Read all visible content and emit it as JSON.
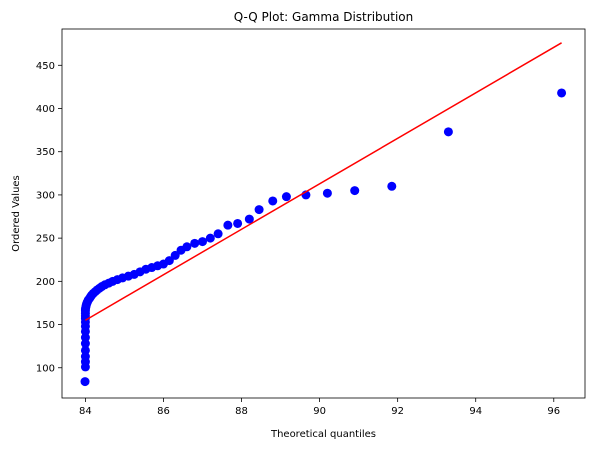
{
  "chart_data": {
    "type": "scatter",
    "title": "Q-Q Plot: Gamma Distribution",
    "xlabel": "Theoretical quantiles",
    "ylabel": "Ordered Values",
    "xlim": [
      83.4,
      96.8
    ],
    "ylim": [
      65,
      492
    ],
    "x_ticks": [
      84,
      86,
      88,
      90,
      92,
      94,
      96
    ],
    "y_ticks": [
      100,
      150,
      200,
      250,
      300,
      350,
      400,
      450
    ],
    "grid": false,
    "legend": "none",
    "colors": {
      "points": "#0000ff",
      "fit_line": "#ff0000",
      "axes": "#000000"
    },
    "series": [
      {
        "kind": "points",
        "x": [
          83.99,
          84.0,
          84.0,
          84.0,
          84.0,
          84.0,
          84.0,
          84.0,
          84.0,
          84.0,
          84.0,
          84.0,
          84.0,
          84.0,
          84.0,
          84.01,
          84.02,
          84.03,
          84.05,
          84.07,
          84.1,
          84.13,
          84.16,
          84.2,
          84.25,
          84.3,
          84.36,
          84.42,
          84.5,
          84.6,
          84.7,
          84.82,
          84.95,
          85.1,
          85.25,
          85.4,
          85.55,
          85.7,
          85.85,
          86.0,
          86.15,
          86.3,
          86.45,
          86.6,
          86.8,
          87.0,
          87.2,
          87.4,
          87.65,
          87.9,
          88.2,
          88.45,
          88.8,
          89.15,
          89.65,
          90.2,
          90.9,
          91.85,
          93.3,
          96.2
        ],
        "y": [
          84,
          101,
          107,
          113,
          120,
          128,
          135,
          142,
          148,
          153,
          157,
          160,
          163,
          166,
          168,
          170,
          172,
          174,
          176,
          178,
          180,
          182,
          184,
          186,
          188,
          190,
          192,
          194,
          196,
          198,
          200,
          202,
          204,
          206,
          208,
          211,
          214,
          216,
          218,
          220,
          224,
          230,
          236,
          240,
          244,
          246,
          250,
          255,
          265,
          267,
          272,
          283,
          293,
          298,
          300,
          302,
          305,
          310,
          373,
          418
        ]
      },
      {
        "kind": "line",
        "x": [
          84.0,
          96.2
        ],
        "y": [
          155,
          476
        ]
      }
    ]
  }
}
